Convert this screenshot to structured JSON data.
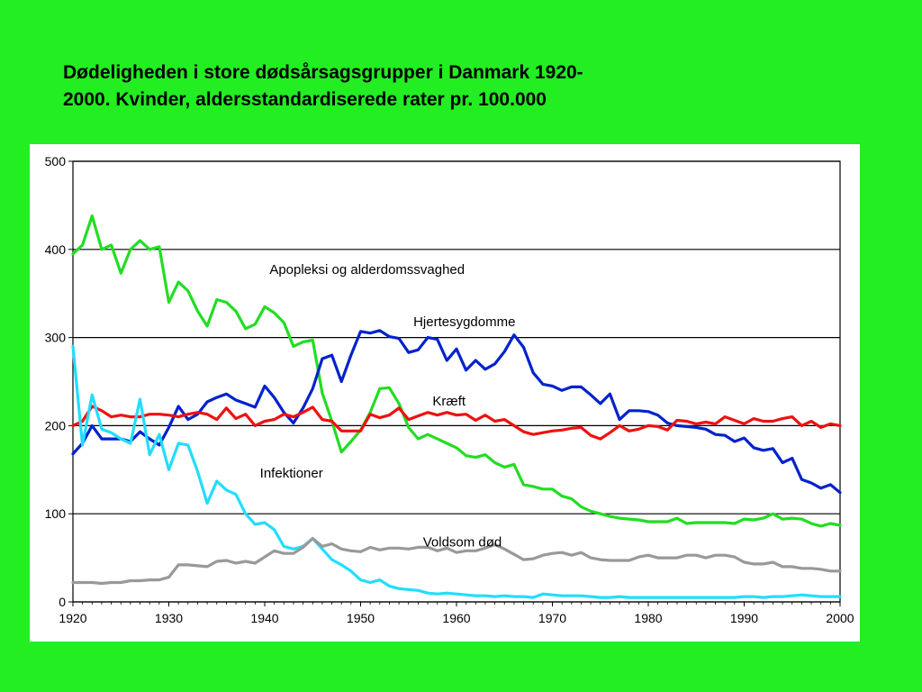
{
  "title_lines": [
    "Dødeligheden i store dødsårsagsgrupper i Danmark 1920-",
    "2000. Kvinder, aldersstandardiserede rater pr. 100.000"
  ],
  "colors": {
    "background": "#22ee22",
    "panel": "#ffffff"
  },
  "chart_data": {
    "type": "line",
    "title": "Dødeligheden i store dødsårsagsgrupper i Danmark 1920-2000. Kvinder, aldersstandardiserede rater pr. 100.000",
    "xlabel": "",
    "ylabel": "",
    "xlim": [
      1920,
      2000
    ],
    "ylim": [
      0,
      500
    ],
    "x_ticks": [
      "1920",
      "1930",
      "1940",
      "1950",
      "1960",
      "1970",
      "1980",
      "1990",
      "2000"
    ],
    "y_ticks": [
      "0",
      "100",
      "200",
      "300",
      "400",
      "500"
    ],
    "grid": "horizontal",
    "legend": "none",
    "series": [
      {
        "name": "Apopleksi og alderdomssvaghed",
        "color": "#22dd22",
        "x": [
          1920,
          1921,
          1922,
          1923,
          1924,
          1925,
          1926,
          1927,
          1928,
          1929,
          1930,
          1931,
          1932,
          1933,
          1934,
          1935,
          1936,
          1937,
          1938,
          1939,
          1940,
          1941,
          1942,
          1943,
          1944,
          1945,
          1946,
          1947,
          1948,
          1949,
          1950,
          1951,
          1952,
          1953,
          1954,
          1955,
          1956,
          1957,
          1958,
          1959,
          1960,
          1961,
          1962,
          1963,
          1964,
          1965,
          1966,
          1967,
          1968,
          1969,
          1970,
          1971,
          1972,
          1973,
          1974,
          1975,
          1976,
          1977,
          1978,
          1979,
          1980,
          1981,
          1982,
          1983,
          1984,
          1985,
          1986,
          1987,
          1988,
          1989,
          1990,
          1991,
          1992,
          1993,
          1994,
          1995,
          1996,
          1997,
          1998,
          1999,
          2000
        ],
        "y": [
          395,
          405,
          438,
          400,
          405,
          373,
          400,
          410,
          400,
          403,
          340,
          363,
          353,
          330,
          313,
          343,
          340,
          330,
          310,
          315,
          335,
          328,
          317,
          290,
          295,
          297,
          237,
          205,
          170,
          182,
          195,
          215,
          242,
          243,
          225,
          198,
          185,
          190,
          185,
          180,
          175,
          166,
          164,
          167,
          158,
          153,
          156,
          133,
          131,
          128,
          128,
          120,
          117,
          108,
          103,
          100,
          97,
          95,
          94,
          93,
          91,
          91,
          91,
          95,
          89,
          90,
          90,
          90,
          90,
          89,
          94,
          93,
          95,
          100,
          94,
          95,
          94,
          89,
          86,
          89,
          87
        ]
      },
      {
        "name": "Hjertesygdomme",
        "color": "#0022cc",
        "x": [
          1920,
          1921,
          1922,
          1923,
          1924,
          1925,
          1926,
          1927,
          1928,
          1929,
          1930,
          1931,
          1932,
          1933,
          1934,
          1935,
          1936,
          1937,
          1938,
          1939,
          1940,
          1941,
          1942,
          1943,
          1944,
          1945,
          1946,
          1947,
          1948,
          1949,
          1950,
          1951,
          1952,
          1953,
          1954,
          1955,
          1956,
          1957,
          1958,
          1959,
          1960,
          1961,
          1962,
          1963,
          1964,
          1965,
          1966,
          1967,
          1968,
          1969,
          1970,
          1971,
          1972,
          1973,
          1974,
          1975,
          1976,
          1977,
          1978,
          1979,
          1980,
          1981,
          1982,
          1983,
          1984,
          1985,
          1986,
          1987,
          1988,
          1989,
          1990,
          1991,
          1992,
          1993,
          1994,
          1995,
          1996,
          1997,
          1998,
          1999,
          2000
        ],
        "y": [
          168,
          180,
          200,
          185,
          185,
          185,
          182,
          193,
          185,
          178,
          198,
          222,
          207,
          213,
          227,
          232,
          236,
          229,
          225,
          221,
          245,
          232,
          215,
          203,
          220,
          242,
          276,
          280,
          250,
          280,
          307,
          305,
          308,
          301,
          299,
          283,
          286,
          300,
          298,
          274,
          287,
          263,
          274,
          264,
          270,
          284,
          303,
          289,
          260,
          247,
          245,
          240,
          244,
          244,
          235,
          225,
          236,
          207,
          217,
          217,
          216,
          212,
          203,
          200,
          199,
          198,
          196,
          190,
          189,
          182,
          186,
          175,
          172,
          174,
          158,
          163,
          139,
          135,
          129,
          133,
          124
        ]
      },
      {
        "name": "Kræft",
        "color": "#ee1111",
        "x": [
          1920,
          1921,
          1922,
          1923,
          1924,
          1925,
          1926,
          1927,
          1928,
          1929,
          1930,
          1931,
          1932,
          1933,
          1934,
          1935,
          1936,
          1937,
          1938,
          1939,
          1940,
          1941,
          1942,
          1943,
          1944,
          1945,
          1946,
          1947,
          1948,
          1949,
          1950,
          1951,
          1952,
          1953,
          1954,
          1955,
          1956,
          1957,
          1958,
          1959,
          1960,
          1961,
          1962,
          1963,
          1964,
          1965,
          1966,
          1967,
          1968,
          1969,
          1970,
          1971,
          1972,
          1973,
          1974,
          1975,
          1976,
          1977,
          1978,
          1979,
          1980,
          1981,
          1982,
          1983,
          1984,
          1985,
          1986,
          1987,
          1988,
          1989,
          1990,
          1991,
          1992,
          1993,
          1994,
          1995,
          1996,
          1997,
          1998,
          1999,
          2000
        ],
        "y": [
          200,
          205,
          222,
          217,
          210,
          212,
          210,
          210,
          213,
          213,
          212,
          210,
          213,
          215,
          213,
          207,
          220,
          208,
          213,
          200,
          205,
          207,
          213,
          210,
          215,
          221,
          207,
          205,
          194,
          194,
          194,
          213,
          209,
          212,
          220,
          207,
          211,
          215,
          212,
          215,
          212,
          213,
          206,
          212,
          205,
          207,
          200,
          193,
          190,
          192,
          194,
          195,
          197,
          198,
          189,
          185,
          192,
          200,
          194,
          196,
          200,
          199,
          195,
          206,
          205,
          202,
          204,
          202,
          210,
          206,
          202,
          208,
          205,
          205,
          208,
          210,
          200,
          205,
          198,
          202,
          200
        ]
      },
      {
        "name": "Infektioner",
        "color": "#22ddff",
        "x": [
          1920,
          1921,
          1922,
          1923,
          1924,
          1925,
          1926,
          1927,
          1928,
          1929,
          1930,
          1931,
          1932,
          1933,
          1934,
          1935,
          1936,
          1937,
          1938,
          1939,
          1940,
          1941,
          1942,
          1943,
          1944,
          1945,
          1946,
          1947,
          1948,
          1949,
          1950,
          1951,
          1952,
          1953,
          1954,
          1955,
          1956,
          1957,
          1958,
          1959,
          1960,
          1961,
          1962,
          1963,
          1964,
          1965,
          1966,
          1967,
          1968,
          1969,
          1970,
          1971,
          1972,
          1973,
          1974,
          1975,
          1976,
          1977,
          1978,
          1979,
          1980,
          1981,
          1982,
          1983,
          1984,
          1985,
          1986,
          1987,
          1988,
          1989,
          1990,
          1991,
          1992,
          1993,
          1994,
          1995,
          1996,
          1997,
          1998,
          1999,
          2000
        ],
        "y": [
          290,
          178,
          235,
          196,
          192,
          185,
          180,
          230,
          167,
          190,
          150,
          180,
          178,
          148,
          112,
          137,
          127,
          122,
          100,
          88,
          90,
          82,
          63,
          60,
          63,
          72,
          60,
          48,
          42,
          35,
          25,
          22,
          25,
          18,
          15,
          14,
          13,
          10,
          9,
          10,
          9,
          8,
          7,
          7,
          6,
          7,
          6,
          6,
          5,
          9,
          8,
          7,
          7,
          7,
          6,
          5,
          5,
          6,
          5,
          5,
          5,
          5,
          5,
          5,
          5,
          5,
          5,
          5,
          5,
          5,
          6,
          6,
          5,
          6,
          6,
          7,
          8,
          7,
          6,
          6,
          6
        ]
      },
      {
        "name": "Voldsom død",
        "color": "#999999",
        "x": [
          1920,
          1921,
          1922,
          1923,
          1924,
          1925,
          1926,
          1927,
          1928,
          1929,
          1930,
          1931,
          1932,
          1933,
          1934,
          1935,
          1936,
          1937,
          1938,
          1939,
          1940,
          1941,
          1942,
          1943,
          1944,
          1945,
          1946,
          1947,
          1948,
          1949,
          1950,
          1951,
          1952,
          1953,
          1954,
          1955,
          1956,
          1957,
          1958,
          1959,
          1960,
          1961,
          1962,
          1963,
          1964,
          1965,
          1966,
          1967,
          1968,
          1969,
          1970,
          1971,
          1972,
          1973,
          1974,
          1975,
          1976,
          1977,
          1978,
          1979,
          1980,
          1981,
          1982,
          1983,
          1984,
          1985,
          1986,
          1987,
          1988,
          1989,
          1990,
          1991,
          1992,
          1993,
          1994,
          1995,
          1996,
          1997,
          1998,
          1999,
          2000
        ],
        "y": [
          22,
          22,
          22,
          21,
          22,
          22,
          24,
          24,
          25,
          25,
          28,
          42,
          42,
          41,
          40,
          46,
          47,
          44,
          46,
          44,
          51,
          58,
          55,
          55,
          62,
          72,
          63,
          66,
          60,
          58,
          57,
          62,
          59,
          61,
          61,
          60,
          62,
          62,
          58,
          61,
          56,
          58,
          58,
          61,
          65,
          60,
          54,
          48,
          49,
          53,
          55,
          56,
          53,
          56,
          50,
          48,
          47,
          47,
          47,
          51,
          53,
          50,
          50,
          50,
          53,
          53,
          50,
          53,
          53,
          51,
          45,
          43,
          43,
          45,
          40,
          40,
          38,
          38,
          37,
          35,
          35
        ]
      }
    ],
    "annotations": [
      {
        "text": "Apopleksi og alderdomssvaghed",
        "x": 1940.5,
        "y": 372
      },
      {
        "text": "Hjertesygdomme",
        "x": 1955.5,
        "y": 313
      },
      {
        "text": "Kræft",
        "x": 1957.5,
        "y": 223
      },
      {
        "text": "Infektioner",
        "x": 1939.5,
        "y": 141
      },
      {
        "text": "Voldsom død",
        "x": 1956.5,
        "y": 63
      }
    ]
  }
}
